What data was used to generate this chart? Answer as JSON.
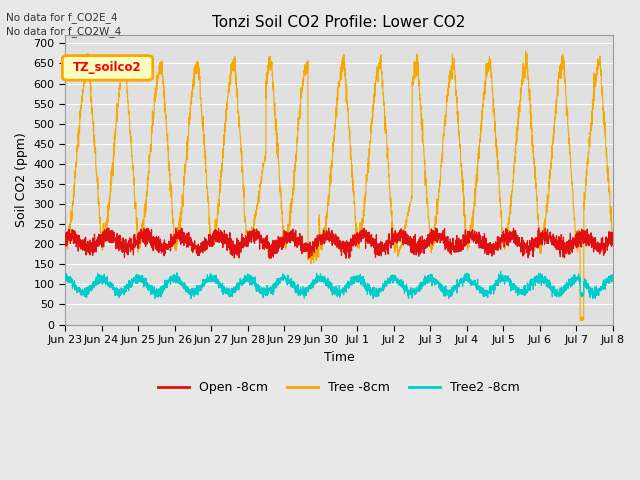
{
  "title": "Tonzi Soil CO2 Profile: Lower CO2",
  "xlabel": "Time",
  "ylabel": "Soil CO2 (ppm)",
  "legend_label": "TZ_soilco2",
  "no_data_text": [
    "No data for f_CO2E_4",
    "No data for f_CO2W_4"
  ],
  "series_labels": [
    "Open -8cm",
    "Tree -8cm",
    "Tree2 -8cm"
  ],
  "series_colors": [
    "#e01010",
    "#f5a800",
    "#00cccc"
  ],
  "ylim": [
    0,
    720
  ],
  "yticks": [
    0,
    50,
    100,
    150,
    200,
    250,
    300,
    350,
    400,
    450,
    500,
    550,
    600,
    650,
    700
  ],
  "background_color": "#e8e8e8",
  "plot_bg_color": "#e0e0e0",
  "grid_color": "#ffffff",
  "title_fontsize": 11,
  "label_fontsize": 9,
  "tick_fontsize": 8,
  "figsize": [
    6.4,
    4.8
  ],
  "dpi": 100
}
